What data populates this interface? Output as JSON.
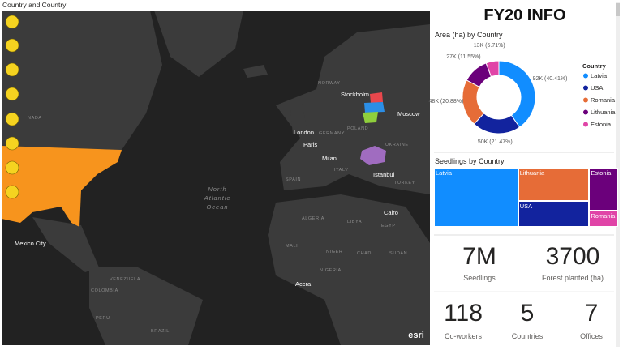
{
  "header": {
    "title": "FY20 INFO"
  },
  "map": {
    "title": "Country and Country",
    "labels": [
      "Stockholm",
      "Moscow",
      "London",
      "Paris",
      "Milan",
      "Istanbul",
      "Cairo",
      "Mexico City",
      "Accra",
      "NORWAY",
      "POLAND",
      "GERMANY",
      "UKRAINE",
      "SPAIN",
      "ITALY",
      "TURKEY",
      "ALGERIA",
      "LIBYA",
      "EGYPT",
      "MALI",
      "NIGER",
      "CHAD",
      "SUDAN",
      "NIGERIA",
      "VENEZUELA",
      "COLOMBIA",
      "PERU",
      "BRAZIL",
      "NADA"
    ],
    "ocean": "North Atlantic Ocean",
    "credit": "esri"
  },
  "chart_data": [
    {
      "type": "donut",
      "title": "Area (ha) by Country",
      "legend_title": "Country",
      "categories": [
        "Latvia",
        "USA",
        "Romania",
        "Lithuania",
        "Estonia"
      ],
      "values": [
        40.41,
        21.47,
        20.88,
        11.55,
        5.71
      ],
      "value_labels": [
        "92K (40.41%)",
        "50K (21.47%)",
        "48K (20.88%)",
        "27K (11.55%)",
        "13K (5.71%)"
      ],
      "colors": [
        "#118DFF",
        "#12239E",
        "#E66C37",
        "#6B007B",
        "#E044A7"
      ]
    },
    {
      "type": "treemap",
      "title": "Seedlings by Country",
      "categories": [
        "Latvia",
        "Lithuania",
        "USA",
        "Estonia",
        "Romania"
      ],
      "values": [
        3.2,
        1.5,
        1.2,
        0.8,
        0.3
      ],
      "colors": [
        "#118DFF",
        "#E66C37",
        "#12239E",
        "#6B007B",
        "#E044A7"
      ]
    }
  ],
  "kpis": [
    {
      "value": "7M",
      "label": "Seedlings"
    },
    {
      "value": 3700,
      "label": "Forest planted (ha)"
    },
    {
      "value": 118,
      "label": "Co-workers"
    },
    {
      "value": 5,
      "label": "Countries"
    },
    {
      "value": 7,
      "label": "Offices"
    }
  ]
}
